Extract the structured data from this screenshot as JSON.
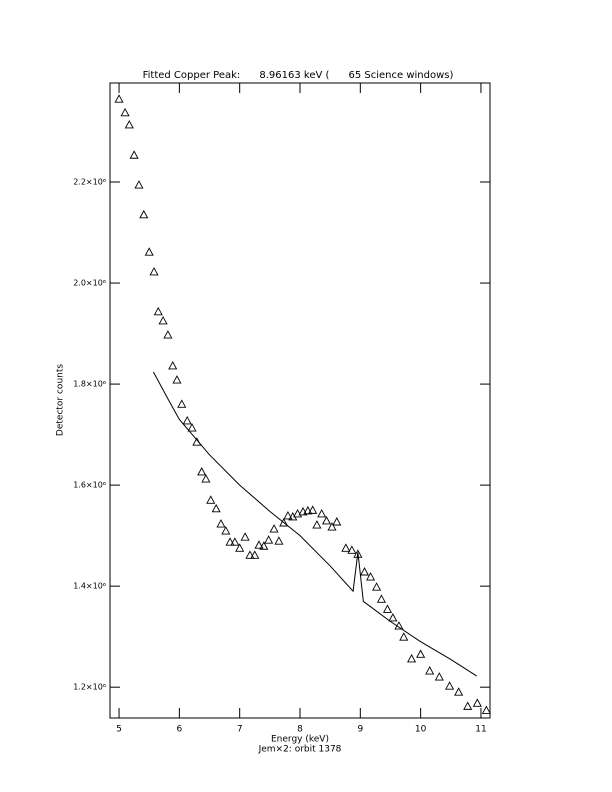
{
  "chart_data": {
    "type": "scatter",
    "title": "Fitted Copper Peak:      8.96163 keV (      65 Science windows)",
    "x_label": "Energy (keV)",
    "subtitle": "Jem×2: orbit 1378",
    "y_label": "Detector counts",
    "color": "#000000",
    "xlim": [
      4.85,
      11.15
    ],
    "xticks": [
      5,
      6,
      7,
      8,
      9,
      10,
      11
    ],
    "ylim": [
      1139000,
      2396000
    ],
    "yticks": [
      {
        "value": 1200000,
        "label": "1.2×10⁶"
      },
      {
        "value": 1400000,
        "label": "1.4×10⁶"
      },
      {
        "value": 1600000,
        "label": "1.6×10⁶"
      },
      {
        "value": 1800000,
        "label": "1.8×10⁶"
      },
      {
        "value": 2000000,
        "label": "2.0×10⁶"
      },
      {
        "value": 2200000,
        "label": "2.2×10⁶"
      }
    ],
    "points": {
      "x": [
        5.0,
        5.1,
        5.17,
        5.25,
        5.33,
        5.41,
        5.5,
        5.58,
        5.65,
        5.73,
        5.81,
        5.89,
        5.96,
        6.04,
        6.13,
        6.21,
        6.29,
        6.37,
        6.44,
        6.52,
        6.61,
        6.69,
        6.77,
        6.84,
        6.92,
        7.0,
        7.09,
        7.17,
        7.25,
        7.32,
        7.4,
        7.48,
        7.57,
        7.65,
        7.73,
        7.8,
        7.88,
        7.96,
        8.05,
        8.13,
        8.21,
        8.28,
        8.36,
        8.44,
        8.53,
        8.61,
        8.76,
        8.86,
        8.96,
        9.07,
        9.17,
        9.27,
        9.35,
        9.45,
        9.54,
        9.64,
        9.72,
        9.85,
        10.0,
        10.15,
        10.31,
        10.48,
        10.63,
        10.78,
        10.94,
        11.09
      ],
      "y": [
        2364000,
        2337000,
        2313000,
        2253000,
        2194000,
        2135000,
        2061000,
        2022000,
        1943000,
        1925000,
        1897000,
        1836000,
        1808000,
        1760000,
        1727000,
        1713000,
        1685000,
        1626000,
        1612000,
        1570000,
        1553000,
        1523000,
        1509000,
        1487000,
        1487000,
        1475000,
        1497000,
        1461000,
        1461000,
        1481000,
        1479000,
        1491000,
        1513000,
        1489000,
        1525000,
        1539000,
        1537000,
        1543000,
        1547000,
        1549000,
        1550000,
        1521000,
        1543000,
        1529000,
        1517000,
        1527000,
        1475000,
        1471000,
        1463000,
        1428000,
        1418000,
        1398000,
        1374000,
        1354000,
        1337000,
        1321000,
        1299000,
        1256000,
        1265000,
        1232000,
        1220000,
        1202000,
        1190000,
        1162000,
        1168000,
        1154000
      ]
    },
    "fit": {
      "x": [
        5.57,
        5.8,
        6.0,
        6.5,
        7.0,
        7.5,
        8.0,
        8.5,
        8.88,
        8.96,
        9.05,
        9.5,
        10.0,
        10.5,
        10.93
      ],
      "y": [
        1824000,
        1773000,
        1730000,
        1660000,
        1600000,
        1548000,
        1500000,
        1440000,
        1390000,
        1467000,
        1370000,
        1330000,
        1290000,
        1255000,
        1222000
      ]
    }
  }
}
